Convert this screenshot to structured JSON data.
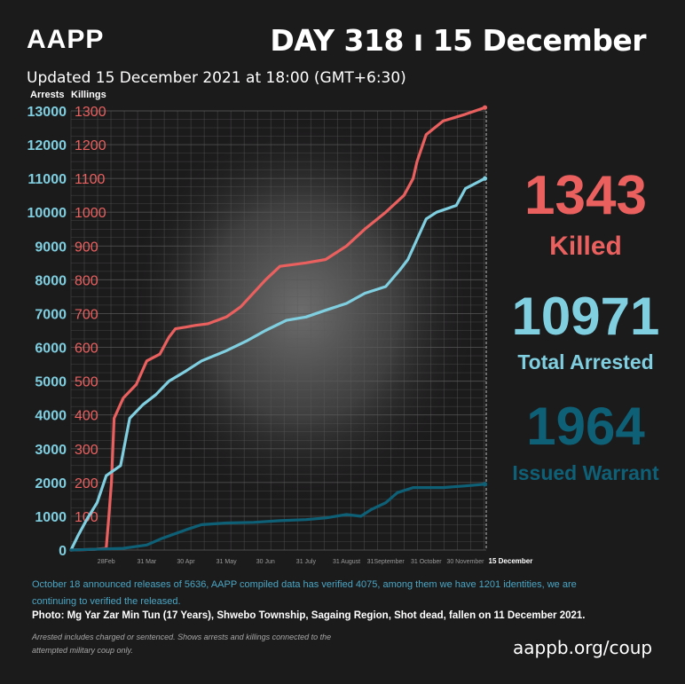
{
  "brand": "AAPP",
  "header_day": "DAY 318 ı 15 December",
  "updated": "Updated 15 December 2021 at 18:00 (GMT+6:30)",
  "colors": {
    "killings": "#e9605f",
    "arrests": "#7fcfe0",
    "warrants": "#0e6077",
    "background": "#1c1b1c"
  },
  "stats": {
    "killed_value": "1343",
    "killed_label": "Killed",
    "arrested_value": "10971",
    "arrested_label": "Total Arrested",
    "warrant_value": "1964",
    "warrant_label": "Issued Warrant"
  },
  "note_verified": "October 18 announced releases of 5636, AAPP compiled data has verified 4075, among them we have 1201 identities, we are continuing to verified the released.",
  "photo_caption": "Photo: Mg Yar Zar Min Tun (17 Years), Shwebo Township, Sagaing Region, Shot dead, fallen on 11 December 2021.",
  "disclaimer": "Arrested includes charged or sentenced. Shows arrests and killings connected to the attempted military coup only.",
  "url": "aappb.org/coup",
  "chart_data": {
    "type": "line",
    "legend": [
      "Arrests",
      "Killings"
    ],
    "x_tick_labels": [
      "28Feb",
      "31 Mar",
      "30 Apr",
      "31 May",
      "30 Jun",
      "31 July",
      "31 August",
      "31September",
      "31 October",
      "30 November",
      "15 December"
    ],
    "x_tick_days": [
      27,
      58,
      88,
      119,
      149,
      180,
      211,
      241,
      272,
      302,
      317
    ],
    "y_left": {
      "label": "Arrests",
      "ticks": [
        "0",
        "1000",
        "2000",
        "3000",
        "4000",
        "5000",
        "6000",
        "7000",
        "8000",
        "9000",
        "10000",
        "11000",
        "12000",
        "13000"
      ],
      "ylim": [
        0,
        13000
      ]
    },
    "y_right": {
      "label": "Killings",
      "ticks": [
        "100",
        "200",
        "300",
        "400",
        "500",
        "600",
        "700",
        "800",
        "900",
        "1000",
        "1100",
        "1200",
        "1300"
      ],
      "ylim": [
        0,
        1300
      ]
    },
    "xlim": [
      0,
      318
    ],
    "series": [
      {
        "name": "Killings",
        "axis": "right",
        "color": "#e9605f",
        "x": [
          0,
          18,
          27,
          29,
          31,
          33,
          40,
          50,
          58,
          68,
          75,
          80,
          88,
          95,
          105,
          119,
          130,
          149,
          160,
          180,
          195,
          211,
          225,
          241,
          255,
          262,
          265,
          272,
          285,
          302,
          317
        ],
        "y": [
          0,
          2,
          5,
          100,
          200,
          390,
          450,
          490,
          560,
          580,
          630,
          655,
          660,
          665,
          670,
          690,
          720,
          800,
          840,
          850,
          860,
          900,
          950,
          1000,
          1050,
          1100,
          1150,
          1230,
          1270,
          1290,
          1310
        ]
      },
      {
        "name": "Arrests",
        "axis": "left",
        "color": "#7fcfe0",
        "x": [
          0,
          5,
          12,
          20,
          27,
          38,
          45,
          55,
          65,
          75,
          88,
          100,
          119,
          135,
          149,
          165,
          180,
          195,
          211,
          225,
          241,
          252,
          258,
          265,
          272,
          280,
          295,
          302,
          317
        ],
        "y": [
          0,
          400,
          900,
          1400,
          2200,
          2500,
          3900,
          4300,
          4600,
          5000,
          5300,
          5600,
          5900,
          6200,
          6500,
          6800,
          6900,
          7100,
          7300,
          7600,
          7800,
          8300,
          8600,
          9200,
          9800,
          10000,
          10200,
          10700,
          11000
        ]
      },
      {
        "name": "Issued Warrant",
        "axis": "left",
        "color": "#0e6077",
        "x": [
          0,
          40,
          58,
          70,
          88,
          100,
          119,
          140,
          160,
          180,
          195,
          211,
          222,
          230,
          241,
          250,
          262,
          270,
          285,
          302,
          317
        ],
        "y": [
          0,
          50,
          150,
          350,
          600,
          750,
          800,
          820,
          870,
          900,
          950,
          1050,
          1000,
          1200,
          1400,
          1700,
          1850,
          1850,
          1850,
          1900,
          1950
        ]
      }
    ]
  }
}
